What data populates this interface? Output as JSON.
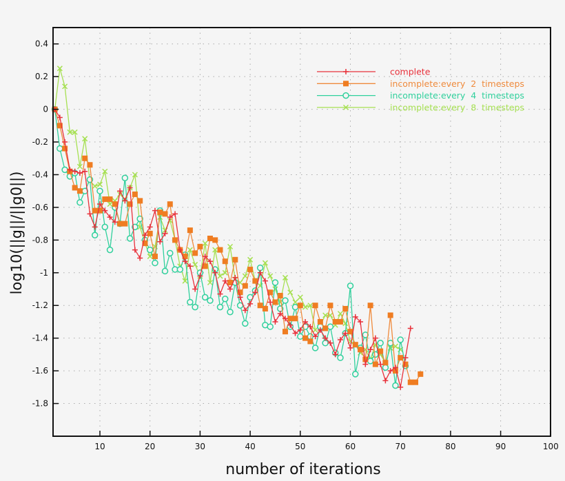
{
  "chart_data": {
    "type": "line",
    "title": "",
    "xlabel": "number  of  iterations",
    "ylabel": "log10(||g||/||g0||)",
    "xlim": [
      1,
      100
    ],
    "ylim": [
      -2.0,
      0.5
    ],
    "xticks": [
      10,
      20,
      30,
      40,
      50,
      60,
      70,
      80,
      90,
      100
    ],
    "yticks": [
      0.4,
      0.2,
      0,
      -0.2,
      -0.4,
      -0.6,
      -0.8,
      -1,
      -1.2,
      -1.4,
      -1.6,
      -1.8
    ],
    "grid": true,
    "legend_position": "top-right",
    "series": [
      {
        "name": "complete",
        "color": "#e8303a",
        "marker": "plus",
        "values": [
          0,
          -0.05,
          -0.2,
          -0.37,
          -0.38,
          -0.39,
          -0.38,
          -0.64,
          -0.72,
          -0.58,
          -0.62,
          -0.66,
          -0.69,
          -0.5,
          -0.56,
          -0.48,
          -0.86,
          -0.91,
          -0.77,
          -0.72,
          -0.62,
          -0.81,
          -0.76,
          -0.66,
          -0.64,
          -0.86,
          -0.93,
          -0.96,
          -1.1,
          -1.02,
          -0.9,
          -0.93,
          -1.0,
          -1.13,
          -1.05,
          -1.1,
          -1.03,
          -1.15,
          -1.23,
          -1.19,
          -1.12,
          -1.0,
          -1.05,
          -1.18,
          -1.3,
          -1.25,
          -1.28,
          -1.32,
          -1.37,
          -1.35,
          -1.3,
          -1.33,
          -1.39,
          -1.35,
          -1.4,
          -1.43,
          -1.5,
          -1.41,
          -1.37,
          -1.46,
          -1.27,
          -1.3,
          -1.56,
          -1.47,
          -1.4,
          -1.56,
          -1.66,
          -1.6,
          -1.58,
          -1.7,
          -1.52,
          -1.34
        ]
      },
      {
        "name": "incomplete:every  2  timesteps",
        "color": "#ef8a3c",
        "marker": "square",
        "values": [
          0,
          -0.1,
          -0.24,
          -0.38,
          -0.48,
          -0.5,
          -0.3,
          -0.34,
          -0.62,
          -0.62,
          -0.55,
          -0.55,
          -0.58,
          -0.7,
          -0.7,
          -0.58,
          -0.52,
          -0.56,
          -0.82,
          -0.76,
          -0.9,
          -0.63,
          -0.64,
          -0.58,
          -0.8,
          -0.86,
          -0.9,
          -0.74,
          -0.88,
          -0.84,
          -0.96,
          -0.79,
          -0.8,
          -0.86,
          -0.93,
          -1.06,
          -0.92,
          -1.12,
          -1.08,
          -0.98,
          -1.05,
          -1.2,
          -1.22,
          -1.12,
          -1.18,
          -1.14,
          -1.36,
          -1.28,
          -1.28,
          -1.2,
          -1.4,
          -1.42,
          -1.2,
          -1.3,
          -1.34,
          -1.2,
          -1.3,
          -1.3,
          -1.22,
          -1.36,
          -1.44,
          -1.47,
          -1.53,
          -1.2,
          -1.56,
          -1.48,
          -1.55,
          -1.26,
          -1.6,
          -1.52,
          -1.56,
          -1.67,
          -1.67,
          -1.62
        ]
      },
      {
        "name": "incomplete:every  4  timesteps",
        "color": "#2fd09c",
        "marker": "circle",
        "values": [
          0,
          -0.24,
          -0.37,
          -0.41,
          -0.39,
          -0.57,
          -0.5,
          -0.43,
          -0.77,
          -0.5,
          -0.72,
          -0.86,
          -0.6,
          -0.7,
          -0.42,
          -0.79,
          -0.72,
          -0.67,
          -0.8,
          -0.86,
          -0.94,
          -0.62,
          -0.99,
          -0.88,
          -0.98,
          -0.98,
          -0.89,
          -1.18,
          -1.21,
          -1.0,
          -1.15,
          -1.17,
          -0.98,
          -1.21,
          -1.16,
          -1.24,
          -1.06,
          -1.2,
          -1.31,
          -1.15,
          -1.11,
          -0.97,
          -1.32,
          -1.33,
          -1.06,
          -1.22,
          -1.17,
          -1.33,
          -1.21,
          -1.39,
          -1.33,
          -1.39,
          -1.46,
          -1.33,
          -1.43,
          -1.33,
          -1.49,
          -1.52,
          -1.37,
          -1.08,
          -1.62,
          -1.46,
          -1.38,
          -1.54,
          -1.5,
          -1.43,
          -1.58,
          -1.43,
          -1.69,
          -1.41,
          -1.57
        ]
      },
      {
        "name": "incomplete:every  8  timesteps",
        "color": "#a6e052",
        "marker": "cross",
        "values": [
          0,
          0.25,
          0.14,
          -0.14,
          -0.14,
          -0.35,
          -0.18,
          -0.44,
          -0.47,
          -0.46,
          -0.38,
          -0.58,
          -0.56,
          -0.52,
          -0.55,
          -0.48,
          -0.4,
          -0.72,
          -0.82,
          -0.9,
          -0.84,
          -0.66,
          -0.74,
          -0.68,
          -0.8,
          -0.96,
          -1.05,
          -0.86,
          -0.95,
          -1.02,
          -0.82,
          -1.06,
          -0.86,
          -1.02,
          -1.0,
          -0.84,
          -1.04,
          -1.06,
          -1.02,
          -0.92,
          -1.05,
          -1.08,
          -0.94,
          -1.02,
          -1.1,
          -1.18,
          -1.03,
          -1.12,
          -1.18,
          -1.15,
          -1.21,
          -1.2,
          -1.35,
          -1.32,
          -1.26,
          -1.26,
          -1.32,
          -1.25,
          -1.31,
          -1.42,
          -1.44,
          -1.49,
          -1.47,
          -1.53,
          -1.44,
          -1.5,
          -1.55,
          -1.46,
          -1.45,
          -1.47
        ]
      }
    ]
  }
}
